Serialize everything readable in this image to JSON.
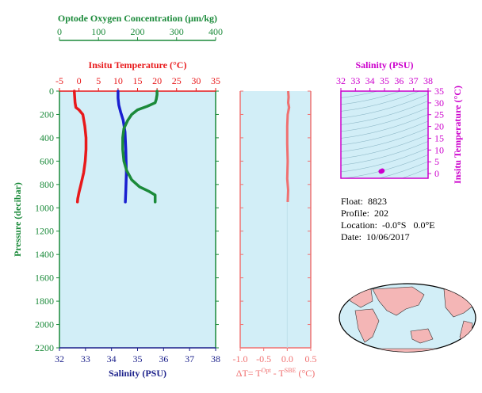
{
  "colors": {
    "oxygen": "#1b8a3a",
    "temperature": "#e8191b",
    "salinity": "#1a1fd0",
    "delta": "#f07070",
    "ts": "#cc00cc",
    "panel": "#d2eef7",
    "land": "#f4b6b6"
  },
  "chart_data": [
    {
      "type": "line",
      "name": "profile",
      "ylabel": "Pressure (decibar)",
      "ylim": [
        2200,
        0
      ],
      "y_ticks": [
        "0",
        "200",
        "400",
        "600",
        "800",
        "1000",
        "1200",
        "1400",
        "1600",
        "1800",
        "2000",
        "2200"
      ],
      "oxygen_axis": {
        "label": "Optode Oxygen Concentration (μm/kg)",
        "lim": [
          0,
          400
        ],
        "ticks": [
          "0",
          "100",
          "200",
          "300",
          "400"
        ]
      },
      "temperature_axis": {
        "label": "Insitu Temperature (°C)",
        "lim": [
          -5,
          35
        ],
        "ticks": [
          "-5",
          "0",
          "5",
          "10",
          "15",
          "20",
          "25",
          "30",
          "35"
        ]
      },
      "salinity_axis": {
        "label": "Salinity (PSU)",
        "lim": [
          32,
          38
        ],
        "ticks": [
          "32",
          "33",
          "34",
          "35",
          "36",
          "37",
          "38"
        ]
      },
      "series": [
        {
          "axis": "temperature",
          "points": [
            [
              -1.2,
              0
            ],
            [
              -1.1,
              50
            ],
            [
              -1.0,
              100
            ],
            [
              -0.8,
              140
            ],
            [
              0.0,
              160
            ],
            [
              1.0,
              200
            ],
            [
              1.5,
              300
            ],
            [
              1.8,
              400
            ],
            [
              1.8,
              500
            ],
            [
              1.6,
              600
            ],
            [
              1.2,
              700
            ],
            [
              0.5,
              800
            ],
            [
              0.0,
              870
            ],
            [
              -0.3,
              920
            ],
            [
              -0.4,
              950
            ]
          ]
        },
        {
          "axis": "salinity",
          "points": [
            [
              34.25,
              0
            ],
            [
              34.25,
              60
            ],
            [
              34.28,
              120
            ],
            [
              34.35,
              180
            ],
            [
              34.45,
              250
            ],
            [
              34.52,
              350
            ],
            [
              34.55,
              500
            ],
            [
              34.57,
              700
            ],
            [
              34.55,
              850
            ],
            [
              34.53,
              950
            ]
          ]
        },
        {
          "axis": "oxygen",
          "points": [
            [
              250,
              0
            ],
            [
              250,
              30
            ],
            [
              248,
              70
            ],
            [
              245,
              100
            ],
            [
              225,
              130
            ],
            [
              200,
              160
            ],
            [
              185,
              200
            ],
            [
              175,
              250
            ],
            [
              165,
              320
            ],
            [
              162,
              400
            ],
            [
              162,
              500
            ],
            [
              165,
              600
            ],
            [
              172,
              680
            ],
            [
              185,
              760
            ],
            [
              205,
              820
            ],
            [
              230,
              860
            ],
            [
              245,
              890
            ],
            [
              245,
              950
            ]
          ]
        }
      ]
    },
    {
      "type": "line",
      "name": "delta-temperature",
      "xlabel": "ΔT= T",
      "xlabel_sup1": "Opt",
      "xlabel_mid": " - T",
      "xlabel_sup2": "SBE",
      "xlabel_unit": " (°C)",
      "xlim": [
        -1.0,
        0.5
      ],
      "x_ticks": [
        "-1.0",
        "-0.5",
        "0.0",
        "0.5"
      ],
      "ylim": [
        2200,
        0
      ],
      "series": [
        {
          "name": "",
          "points": [
            [
              0.02,
              0
            ],
            [
              0.03,
              50
            ],
            [
              0.02,
              100
            ],
            [
              0.04,
              140
            ],
            [
              0.01,
              200
            ],
            [
              0.0,
              300
            ],
            [
              0.0,
              450
            ],
            [
              0.01,
              600
            ],
            [
              0.0,
              750
            ],
            [
              0.02,
              850
            ],
            [
              0.01,
              950
            ]
          ]
        }
      ]
    },
    {
      "type": "scatter",
      "name": "ts-diagram",
      "xlabel": "Salinity (PSU)",
      "ylabel": "Insitu Temperature (°C)",
      "xlim": [
        32,
        38
      ],
      "ylim": [
        -2,
        35
      ],
      "x_ticks": [
        "32",
        "33",
        "34",
        "35",
        "36",
        "37",
        "38"
      ],
      "y_ticks": [
        "0",
        "5",
        "10",
        "15",
        "20",
        "25",
        "30",
        "35"
      ],
      "points": [
        [
          34.8,
          1.0
        ],
        [
          34.85,
          1.2
        ],
        [
          34.75,
          0.9
        ]
      ]
    }
  ],
  "info": {
    "float_label": "Float:",
    "float": "8823",
    "profile_label": "Profile:",
    "profile": "202",
    "location_label": "Location:",
    "location": "-0.0°S   0.0°E",
    "date_label": "Date:",
    "date": "10/06/2017"
  }
}
